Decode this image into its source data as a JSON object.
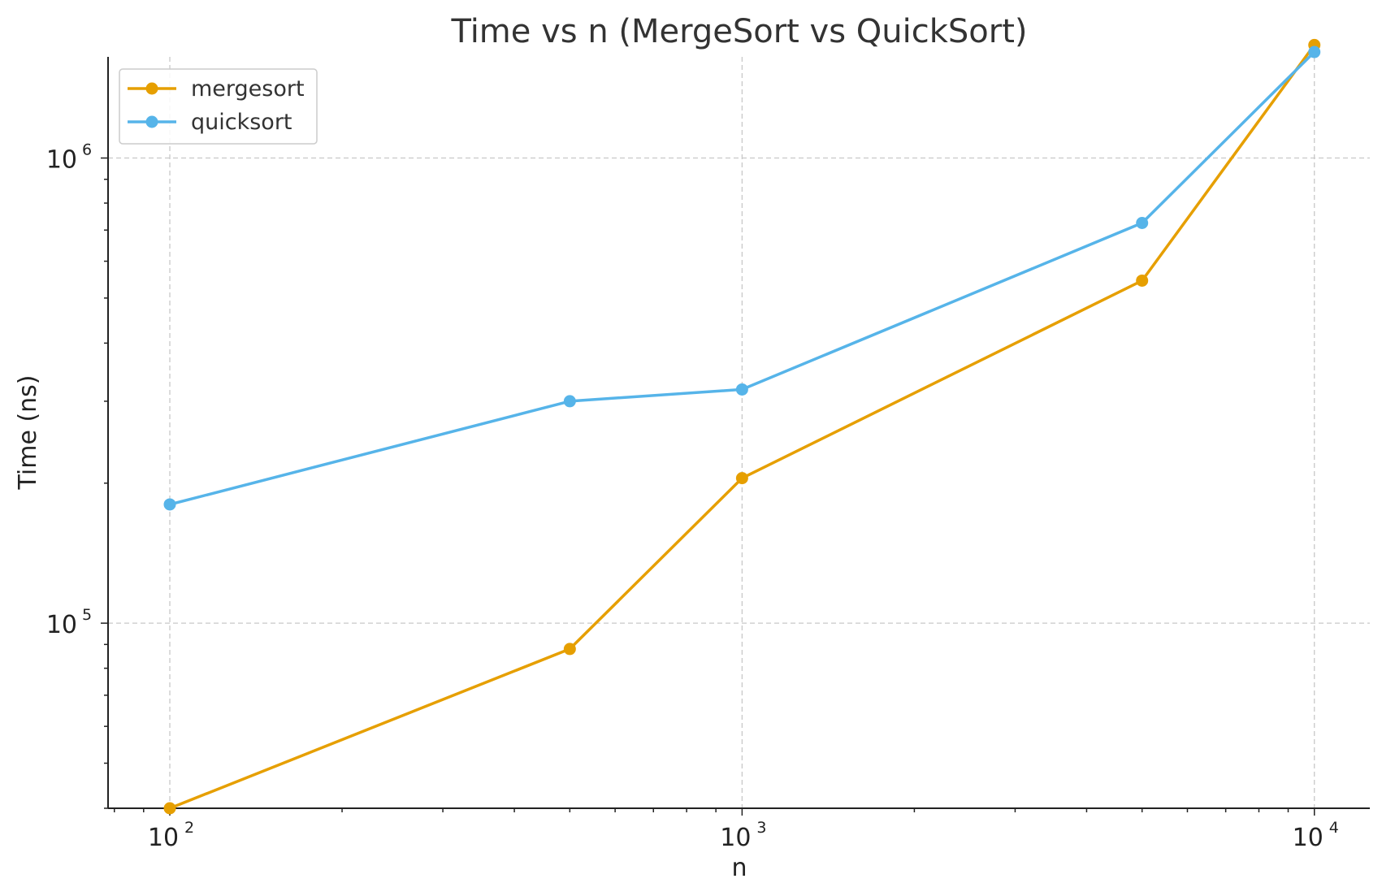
{
  "chart_data": {
    "type": "line",
    "title": "Time vs n (MergeSort vs QuickSort)",
    "xlabel": "n",
    "ylabel": "Time (ns)",
    "xscale": "log",
    "yscale": "log",
    "xlim": [
      78,
      12500
    ],
    "ylim": [
      40000,
      1650000
    ],
    "x_ticks": [
      {
        "value": 100,
        "base": "10",
        "exp": "2"
      },
      {
        "value": 1000,
        "base": "10",
        "exp": "3"
      },
      {
        "value": 10000,
        "base": "10",
        "exp": "4"
      }
    ],
    "y_ticks": [
      {
        "value": 100000,
        "base": "10",
        "exp": "5"
      },
      {
        "value": 1000000,
        "base": "10",
        "exp": "6"
      }
    ],
    "grid": true,
    "legend_position": "top-left",
    "x": [
      100,
      500,
      1000,
      5000,
      10000
    ],
    "series": [
      {
        "name": "mergesort",
        "color": "#E69F00",
        "values": [
          40000,
          88000,
          205000,
          545000,
          1750000
        ]
      },
      {
        "name": "quicksort",
        "color": "#56B4E9",
        "values": [
          180000,
          300000,
          318000,
          725000,
          1690000
        ]
      }
    ]
  }
}
